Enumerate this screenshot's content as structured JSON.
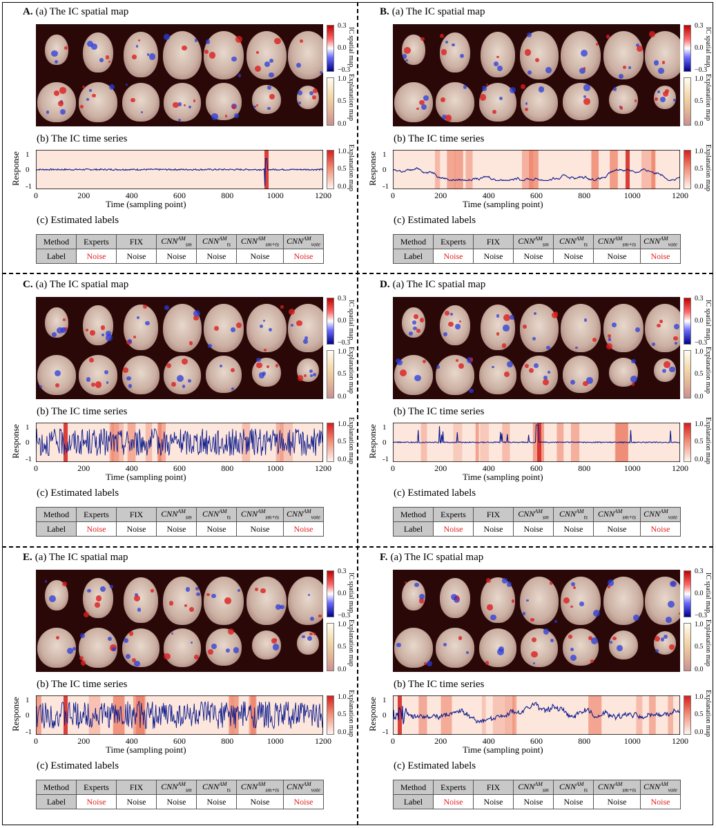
{
  "sections": {
    "spatial": "(a) The IC spatial map",
    "time": "(b) The IC time series",
    "labels": "(c) Estimated labels"
  },
  "colorbars": {
    "ic_label": "IC spatial map",
    "ic_ticks": [
      "0.3",
      "0.0",
      "−0.3"
    ],
    "ex_label": "Explanation map",
    "ex_ticks": [
      "1.0",
      "0.5",
      "0.0"
    ]
  },
  "axes": {
    "ylabel": "Response",
    "xlabel": "Time (sampling point)",
    "yticks": [
      "1",
      "0",
      "-1"
    ],
    "xticks": [
      "0",
      "200",
      "400",
      "600",
      "800",
      "1000",
      "1200"
    ]
  },
  "table": {
    "method_label": "Method",
    "label_label": "Label",
    "methods": [
      {
        "base": "Experts"
      },
      {
        "base": "FIX"
      },
      {
        "base": "CNN",
        "sup": "AM",
        "sub": "sm"
      },
      {
        "base": "CNN",
        "sup": "AM",
        "sub": "ts"
      },
      {
        "base": "CNN",
        "sup": "AM",
        "sub": "sm+ts"
      },
      {
        "base": "CNN",
        "sup": "AM",
        "sub": "vote"
      }
    ]
  },
  "colors": {
    "noise_highlight": "#e21b1b",
    "series": "#0a1a8c",
    "brain_bg": "#2a0808"
  },
  "panels": [
    {
      "letter": "A.",
      "series_style": "flat-spike",
      "labels": [
        "Noise",
        "Noise",
        "Noise",
        "Noise",
        "Noise",
        "Noise"
      ],
      "red": [
        0,
        5
      ]
    },
    {
      "letter": "B.",
      "series_style": "drift",
      "labels": [
        "Noise",
        "Noise",
        "Noise",
        "Noise",
        "Noise",
        "Noise"
      ],
      "red": [
        0,
        5
      ]
    },
    {
      "letter": "C.",
      "series_style": "dense",
      "labels": [
        "Noise",
        "Noise",
        "Noise",
        "Noise",
        "Noise",
        "Noise"
      ],
      "red": [
        0,
        5
      ]
    },
    {
      "letter": "D.",
      "series_style": "spikes",
      "labels": [
        "Noise",
        "Noise",
        "Noise",
        "Noise",
        "Noise",
        "Noise"
      ],
      "red": [
        0,
        5
      ]
    },
    {
      "letter": "E.",
      "series_style": "dense",
      "labels": [
        "Noise",
        "Noise",
        "Noise",
        "Noise",
        "Noise",
        "Noise"
      ],
      "red": [
        0,
        5
      ]
    },
    {
      "letter": "F.",
      "series_style": "drift-noisy",
      "labels": [
        "Noise",
        "Noise",
        "Noise",
        "Noise",
        "Noise",
        "Noise"
      ],
      "red": [
        0,
        5
      ]
    }
  ]
}
